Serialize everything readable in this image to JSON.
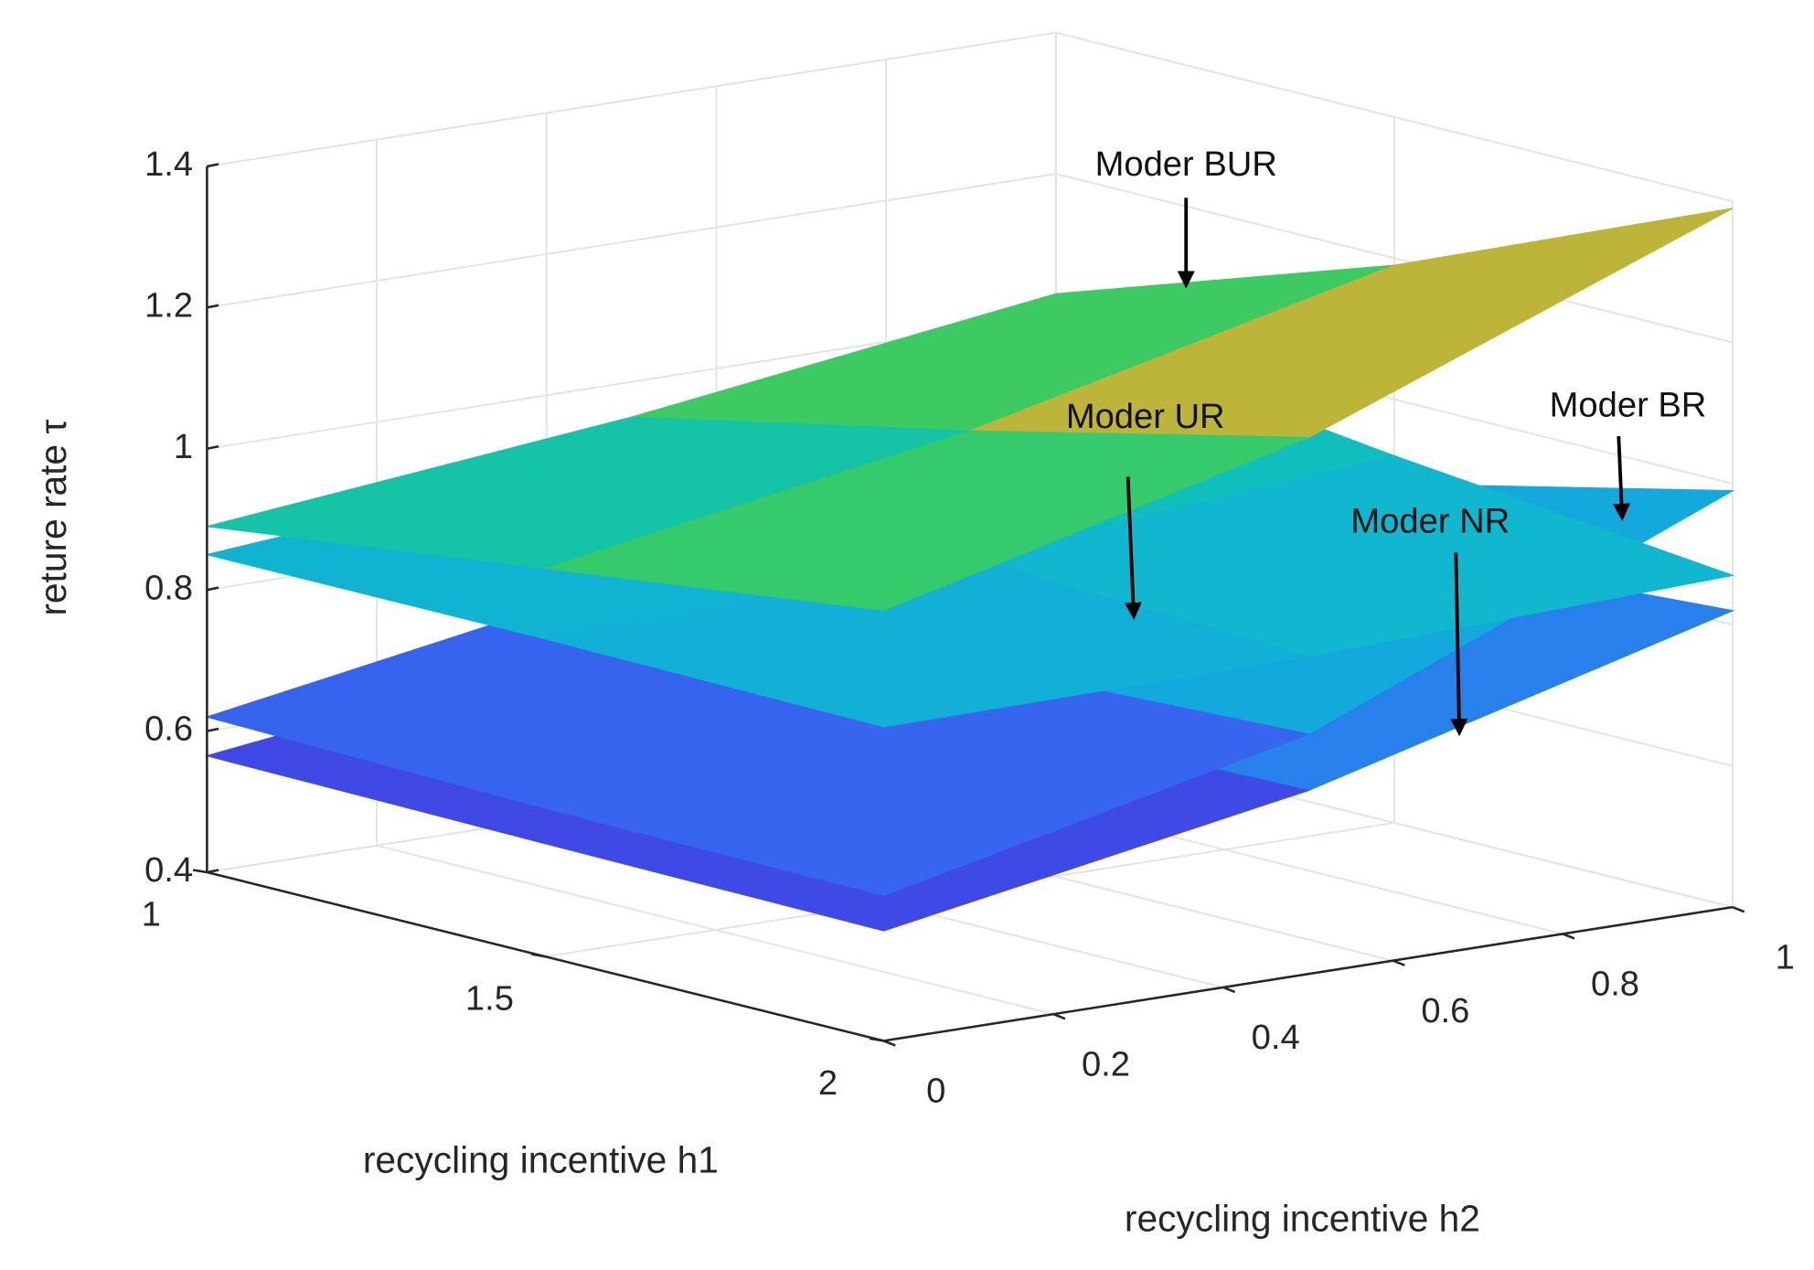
{
  "chart_data": {
    "type": "surface3d",
    "x_label": "recycling incentive h2",
    "y_label": "recycling incentive h1",
    "z_label": "reture rate τ",
    "x": [
      0,
      0.5,
      1
    ],
    "y": [
      1,
      1.5,
      2
    ],
    "xlim": [
      0,
      1
    ],
    "xticks": [
      0,
      0.2,
      0.4,
      0.6,
      0.8,
      1
    ],
    "ylim": [
      1,
      2
    ],
    "yticks": [
      1,
      1.5,
      2
    ],
    "zlim": [
      0.4,
      1.4
    ],
    "zticks": [
      0.4,
      0.6,
      0.8,
      1,
      1.2,
      1.4
    ],
    "grid": true,
    "colormap": "parula",
    "series": [
      {
        "name": "Moder NR",
        "z": [
          [
            0.565,
            0.64,
            0.75
          ],
          [
            0.56,
            0.65,
            0.79
          ],
          [
            0.556,
            0.66,
            0.82
          ]
        ]
      },
      {
        "name": "Moder BR",
        "z": [
          [
            0.62,
            0.72,
            0.85
          ],
          [
            0.61,
            0.72,
            0.88
          ],
          [
            0.606,
            0.74,
            0.99
          ]
        ]
      },
      {
        "name": "Moder UR",
        "z": [
          [
            0.85,
            0.9,
            0.98
          ],
          [
            0.85,
            0.87,
            0.92
          ],
          [
            0.845,
            0.85,
            0.87
          ]
        ]
      },
      {
        "name": "Moder BUR",
        "z": [
          [
            0.89,
            0.95,
            1.03
          ],
          [
            0.95,
            1.05,
            1.19
          ],
          [
            1.01,
            1.16,
            1.39
          ]
        ]
      }
    ]
  }
}
